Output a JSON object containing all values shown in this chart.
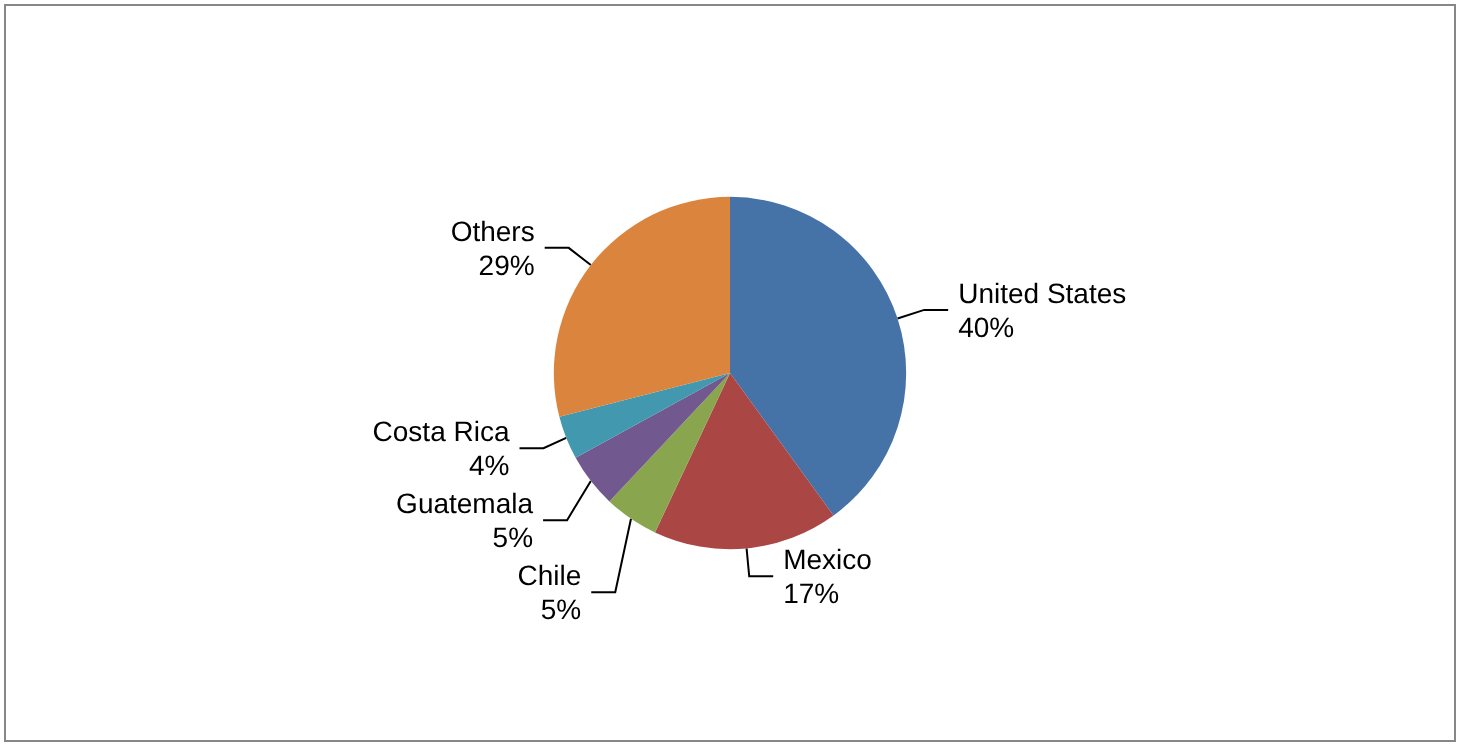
{
  "chart_data": {
    "type": "pie",
    "categories": [
      "United States",
      "Mexico",
      "Chile",
      "Guatemala",
      "Costa Rica",
      "Others"
    ],
    "values": [
      40,
      17,
      5,
      5,
      4,
      29
    ],
    "colors": [
      "#4572a7",
      "#aa4643",
      "#89a54e",
      "#71588f",
      "#4198af",
      "#db843d"
    ],
    "value_labels": [
      "40%",
      "17%",
      "5%",
      "5%",
      "4%",
      "29%"
    ],
    "legend": false
  }
}
